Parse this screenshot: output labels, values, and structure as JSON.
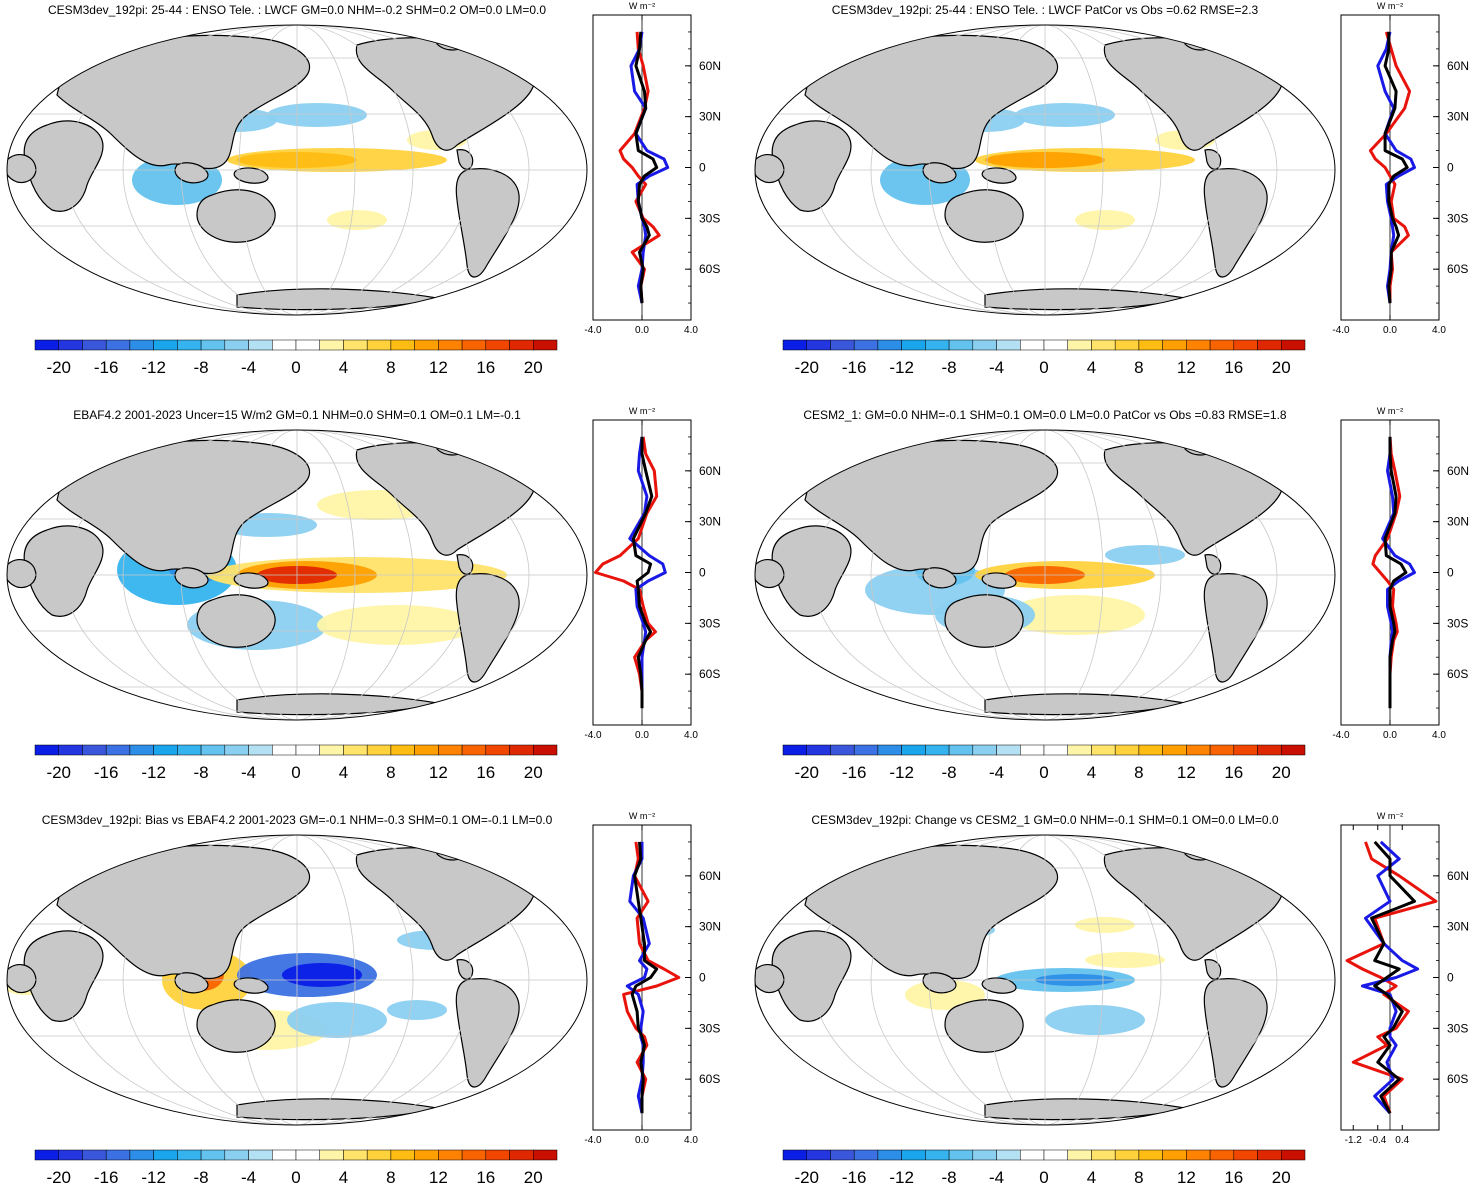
{
  "chart_data": {
    "type": "map_panel_grid",
    "colors": {
      "land": "#c8c8c8",
      "ocean": "#ffffff",
      "coast": "#000000",
      "grid": "#c8c8c8",
      "line_red": "#e8140c",
      "line_blue": "#1a1ae6",
      "line_black": "#000000"
    },
    "colorbar": {
      "levels": [
        -22,
        -20,
        -18,
        -16,
        -14,
        -12,
        -10,
        -8,
        -6,
        -4,
        -2,
        0,
        2,
        4,
        6,
        8,
        10,
        12,
        14,
        16,
        18,
        20,
        22
      ],
      "labels": [
        "-20",
        "-16",
        "-12",
        "-8",
        "-4",
        "0",
        "4",
        "8",
        "12",
        "16",
        "20"
      ],
      "label_values": [
        -20,
        -16,
        -12,
        -8,
        -4,
        0,
        4,
        8,
        12,
        16,
        20
      ],
      "colors": [
        "#0a1ee6",
        "#2336e0",
        "#3a57dc",
        "#3c71e3",
        "#2d8ee8",
        "#1aa6ec",
        "#35b3ee",
        "#63c2ee",
        "#8bcff0",
        "#b4e0f4",
        "#ffffff",
        "#ffffff",
        "#fff5a8",
        "#ffe36a",
        "#ffd23c",
        "#ffbd14",
        "#ffa000",
        "#ff8200",
        "#fa6400",
        "#f04600",
        "#e02800",
        "#c80f00"
      ]
    },
    "lat_labels": [
      "60N",
      "30N",
      "0",
      "30S",
      "60S"
    ],
    "lat_values": [
      60,
      30,
      0,
      -30,
      -60
    ],
    "unit": "W m⁻²",
    "panels": [
      {
        "title": "CESM3dev_192pi: 25-44 : ENSO Tele. : LWCF GM=0.0 NHM=-0.2 SHM=0.2 OM=0.0 LM=0.0",
        "xlim": [
          -4,
          4
        ],
        "xticks": [
          -4,
          0,
          4
        ],
        "xtick_labels": [
          "-4.0",
          "0.0",
          "4.0"
        ],
        "series": [
          {
            "name": "red",
            "lat": [
              80,
              70,
              60,
              45,
              35,
              20,
              10,
              5,
              0,
              -5,
              -10,
              -20,
              -30,
              -35,
              -40,
              -50,
              -60,
              -70,
              -80
            ],
            "values": [
              -0.4,
              -0.3,
              0.1,
              0.5,
              0.2,
              -0.6,
              -1.8,
              -1.5,
              -0.8,
              -0.3,
              0.3,
              -0.5,
              0.1,
              0.9,
              1.4,
              -0.8,
              0.2,
              -0.1,
              0.0
            ]
          },
          {
            "name": "blue",
            "lat": [
              80,
              70,
              60,
              45,
              35,
              20,
              10,
              5,
              0,
              -5,
              -10,
              -20,
              -30,
              -35,
              -40,
              -50,
              -60,
              -70,
              -80
            ],
            "values": [
              0.0,
              -0.2,
              -0.9,
              -0.6,
              0.3,
              -0.5,
              0.4,
              1.8,
              2.1,
              0.6,
              -0.4,
              -0.3,
              0.0,
              0.2,
              0.3,
              0.1,
              0.0,
              -0.3,
              0.0
            ]
          },
          {
            "name": "black",
            "lat": [
              80,
              70,
              60,
              45,
              35,
              20,
              10,
              5,
              0,
              -5,
              -10,
              -20,
              -30,
              -35,
              -40,
              -50,
              -60,
              -70,
              -80
            ],
            "values": [
              -0.1,
              -0.2,
              -0.5,
              0.2,
              0.3,
              -0.5,
              -0.3,
              0.9,
              1.2,
              0.2,
              -0.2,
              -0.3,
              0.0,
              0.4,
              0.6,
              -0.2,
              0.1,
              -0.1,
              0.0
            ]
          }
        ]
      },
      {
        "title": "CESM3dev_192pi: 25-44 : ENSO Tele. : LWCF PatCor vs Obs =0.62 RMSE=2.3",
        "xlim": [
          -4,
          4
        ],
        "xticks": [
          -4,
          0,
          4
        ],
        "xtick_labels": [
          "-4.0",
          "0.0",
          "4.0"
        ],
        "series": [
          {
            "name": "red",
            "lat": [
              80,
              70,
              60,
              45,
              35,
              20,
              10,
              5,
              0,
              -5,
              -10,
              -20,
              -30,
              -35,
              -40,
              -50,
              -60,
              -70,
              -80
            ],
            "values": [
              -0.3,
              0.1,
              0.5,
              1.6,
              1.2,
              -0.3,
              -1.6,
              -1.2,
              -0.4,
              0.0,
              0.4,
              0.1,
              0.3,
              1.2,
              1.5,
              0.1,
              0.2,
              0.0,
              0.0
            ]
          },
          {
            "name": "blue",
            "lat": [
              80,
              70,
              60,
              45,
              35,
              20,
              10,
              5,
              0,
              -5,
              -10,
              -20,
              -30,
              -35,
              -40,
              -50,
              -60,
              -70,
              -80
            ],
            "values": [
              0.0,
              -0.3,
              -1.0,
              -0.4,
              0.3,
              -0.4,
              0.5,
              1.7,
              2.0,
              0.7,
              -0.3,
              -0.2,
              0.1,
              0.2,
              0.3,
              0.1,
              0.0,
              -0.2,
              0.0
            ]
          },
          {
            "name": "black",
            "lat": [
              80,
              70,
              60,
              45,
              35,
              20,
              10,
              5,
              0,
              -5,
              -10,
              -20,
              -30,
              -35,
              -40,
              -50,
              -60,
              -70,
              -80
            ],
            "values": [
              -0.1,
              -0.1,
              -0.4,
              0.5,
              0.4,
              -0.4,
              -0.4,
              1.0,
              1.4,
              0.3,
              -0.1,
              -0.1,
              0.2,
              0.5,
              0.7,
              0.1,
              0.1,
              -0.1,
              0.0
            ]
          }
        ]
      },
      {
        "title": "EBAF4.2 2001-2023 Uncer=15 W/m2 GM=0.1 NHM=0.0 SHM=0.1 OM=0.1 LM=-0.1",
        "xlim": [
          -4,
          4
        ],
        "xticks": [
          -4,
          0,
          4
        ],
        "xtick_labels": [
          "-4.0",
          "0.0",
          "4.0"
        ],
        "series": [
          {
            "name": "red",
            "lat": [
              80,
              70,
              60,
              45,
              35,
              20,
              10,
              5,
              0,
              -5,
              -10,
              -20,
              -30,
              -35,
              -40,
              -50,
              -60,
              -70,
              -80
            ],
            "values": [
              0.1,
              0.3,
              1.0,
              1.2,
              0.4,
              -0.3,
              -1.8,
              -3.2,
              -3.8,
              -1.5,
              -0.2,
              0.1,
              0.5,
              1.1,
              0.3,
              -0.6,
              -0.2,
              0.0,
              0.0
            ]
          },
          {
            "name": "blue",
            "lat": [
              80,
              70,
              60,
              45,
              35,
              20,
              10,
              5,
              0,
              -5,
              -10,
              -20,
              -30,
              -35,
              -40,
              -50,
              -60,
              -70,
              -80
            ],
            "values": [
              0.0,
              -0.2,
              -0.3,
              0.4,
              0.2,
              -1.0,
              0.6,
              1.7,
              1.9,
              0.5,
              -0.5,
              -0.4,
              0.1,
              0.3,
              0.2,
              0.0,
              0.0,
              0.0,
              0.0
            ]
          },
          {
            "name": "black",
            "lat": [
              80,
              70,
              60,
              45,
              35,
              20,
              10,
              5,
              0,
              -5,
              -10,
              -20,
              -30,
              -35,
              -40,
              -50,
              -60,
              -70,
              -80
            ],
            "values": [
              0.0,
              0.0,
              0.3,
              0.8,
              0.3,
              -0.7,
              -0.5,
              0.7,
              0.5,
              -0.4,
              -0.3,
              -0.2,
              0.3,
              0.7,
              0.3,
              -0.3,
              -0.1,
              0.0,
              0.0
            ]
          }
        ]
      },
      {
        "title": "CESM2_1: GM=0.0 NHM=-0.1 SHM=0.1 OM=0.0 LM=0.0 PatCor vs Obs =0.83 RMSE=1.8",
        "xlim": [
          -4,
          4
        ],
        "xticks": [
          -4,
          0,
          4
        ],
        "xtick_labels": [
          "-4.0",
          "0.0",
          "4.0"
        ],
        "series": [
          {
            "name": "red",
            "lat": [
              80,
              70,
              60,
              45,
              35,
              20,
              10,
              5,
              0,
              -5,
              -10,
              -20,
              -30,
              -35,
              -40,
              -50,
              -60,
              -70,
              -80
            ],
            "values": [
              0.0,
              0.1,
              0.4,
              0.8,
              0.5,
              -0.2,
              -1.2,
              -1.4,
              -0.8,
              -0.2,
              0.3,
              0.2,
              0.5,
              0.6,
              0.3,
              0.1,
              0.0,
              0.0,
              0.0
            ]
          },
          {
            "name": "blue",
            "lat": [
              80,
              70,
              60,
              45,
              35,
              20,
              10,
              5,
              0,
              -5,
              -10,
              -20,
              -30,
              -35,
              -40,
              -50,
              -60,
              -70,
              -80
            ],
            "values": [
              0.0,
              0.0,
              -0.2,
              0.2,
              0.3,
              -0.6,
              0.4,
              1.6,
              2.0,
              0.7,
              -0.2,
              -0.2,
              0.1,
              0.2,
              0.1,
              0.0,
              0.0,
              0.0,
              0.0
            ]
          },
          {
            "name": "black",
            "lat": [
              80,
              70,
              60,
              45,
              35,
              20,
              10,
              5,
              0,
              -5,
              -10,
              -20,
              -30,
              -35,
              -40,
              -50,
              -60,
              -70,
              -80
            ],
            "values": [
              0.0,
              0.0,
              0.1,
              0.5,
              0.4,
              -0.4,
              -0.3,
              0.9,
              1.3,
              0.3,
              0.0,
              0.0,
              0.3,
              0.4,
              0.2,
              0.0,
              0.0,
              0.0,
              0.0
            ]
          }
        ]
      },
      {
        "title": "CESM3dev_192pi: Bias vs EBAF4.2 2001-2023 GM=-0.1 NHM=-0.3 SHM=0.1 OM=-0.1 LM=0.0",
        "xlim": [
          -4,
          4
        ],
        "xticks": [
          -4,
          0,
          4
        ],
        "xtick_labels": [
          "-4.0",
          "0.0",
          "4.0"
        ],
        "series": [
          {
            "name": "red",
            "lat": [
              80,
              70,
              60,
              45,
              35,
              20,
              10,
              5,
              0,
              -5,
              -10,
              -20,
              -30,
              -35,
              -40,
              -50,
              -60,
              -70,
              -80
            ],
            "values": [
              -0.5,
              -0.3,
              -0.6,
              0.5,
              -0.4,
              -0.2,
              0.5,
              1.8,
              3.0,
              1.2,
              -1.5,
              -1.2,
              -0.5,
              0.2,
              0.4,
              -0.4,
              0.3,
              0.0,
              0.0
            ]
          },
          {
            "name": "blue",
            "lat": [
              80,
              70,
              60,
              45,
              35,
              20,
              10,
              5,
              0,
              -5,
              -10,
              -20,
              -30,
              -35,
              -40,
              -50,
              -60,
              -70,
              -80
            ],
            "values": [
              0.0,
              0.0,
              -0.7,
              -1.0,
              0.1,
              0.6,
              -0.2,
              0.4,
              0.2,
              -1.2,
              -0.3,
              0.1,
              -0.1,
              -0.1,
              0.1,
              0.1,
              0.0,
              -0.3,
              0.0
            ]
          },
          {
            "name": "black",
            "lat": [
              80,
              70,
              60,
              45,
              35,
              20,
              10,
              5,
              0,
              -5,
              -10,
              -20,
              -30,
              -35,
              -40,
              -50,
              -60,
              -70,
              -80
            ],
            "values": [
              -0.2,
              -0.1,
              -0.6,
              -0.3,
              -0.1,
              0.2,
              0.2,
              1.2,
              0.7,
              -0.5,
              -0.8,
              -0.4,
              -0.3,
              0.0,
              0.2,
              -0.1,
              0.1,
              0.0,
              0.0
            ]
          }
        ]
      },
      {
        "title": "CESM3dev_192pi: Change vs CESM2_1 GM=0.0 NHM=-0.1 SHM=0.1 OM=0.0 LM=0.0",
        "xlim": [
          -1.6,
          1.6
        ],
        "xticks": [
          -1.2,
          -0.4,
          0.4
        ],
        "xtick_labels": [
          "-1.2",
          "-0.4",
          "0.4"
        ],
        "series": [
          {
            "name": "red",
            "lat": [
              80,
              70,
              60,
              45,
              35,
              20,
              10,
              5,
              0,
              -5,
              -10,
              -20,
              -30,
              -35,
              -40,
              -50,
              -60,
              -70,
              -80
            ],
            "values": [
              -0.8,
              -0.6,
              0.3,
              1.5,
              -0.5,
              -0.2,
              -1.4,
              -0.9,
              -0.3,
              0.2,
              -0.2,
              0.6,
              0.2,
              -0.4,
              -0.1,
              -1.2,
              0.4,
              -0.2,
              0.0
            ]
          },
          {
            "name": "blue",
            "lat": [
              80,
              70,
              60,
              45,
              35,
              20,
              10,
              5,
              0,
              -5,
              -10,
              -20,
              -30,
              -35,
              -40,
              -50,
              -60,
              -70,
              -80
            ],
            "values": [
              -0.3,
              0.3,
              -0.4,
              0.0,
              -0.8,
              -0.2,
              0.4,
              0.9,
              0.2,
              -0.9,
              0.0,
              0.2,
              0.0,
              0.0,
              0.2,
              -0.1,
              0.1,
              -0.5,
              0.0
            ]
          },
          {
            "name": "black",
            "lat": [
              80,
              70,
              60,
              45,
              35,
              20,
              10,
              5,
              0,
              -5,
              -10,
              -20,
              -30,
              -35,
              -40,
              -50,
              -60,
              -70,
              -80
            ],
            "values": [
              -0.5,
              0.0,
              0.0,
              0.8,
              -0.6,
              -0.2,
              -0.5,
              0.3,
              -0.1,
              -0.5,
              -0.1,
              0.4,
              0.1,
              -0.2,
              0.0,
              -0.4,
              0.3,
              -0.3,
              0.0
            ]
          }
        ]
      }
    ]
  }
}
